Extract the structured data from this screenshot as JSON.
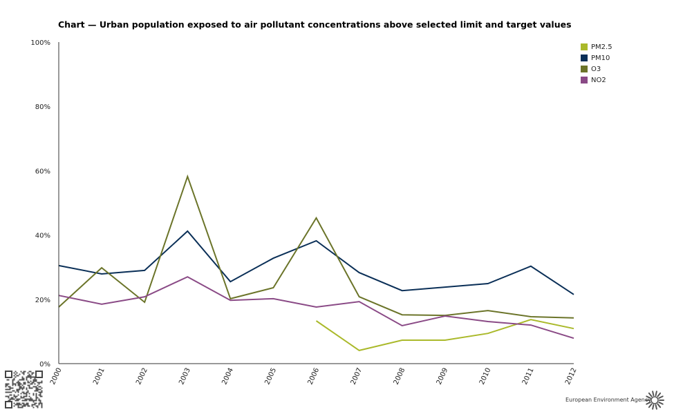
{
  "title": "Chart — Urban population exposed to air pollutant concentrations above selected limit and target values",
  "footer": {
    "agency": "European Environment Agency"
  },
  "icons": {
    "qr": "qr-code-icon",
    "logo": "eea-sun-logo-icon"
  },
  "chart_data": {
    "type": "line",
    "title": "Chart — Urban population exposed to air pollutant concentrations above selected limit and target values",
    "xlabel": "",
    "ylabel": "",
    "ylim": [
      0,
      100
    ],
    "yticks": [
      "0%",
      "20%",
      "40%",
      "60%",
      "80%",
      "100%"
    ],
    "ytick_values": [
      0,
      20,
      40,
      60,
      80,
      100
    ],
    "categories": [
      "2000",
      "2001",
      "2002",
      "2003",
      "2004",
      "2005",
      "2006",
      "2007",
      "2008",
      "2009",
      "2010",
      "2011",
      "2012"
    ],
    "legend_position": "top-right",
    "grid": false,
    "series": [
      {
        "name": "PM2.5",
        "color": "#aab92a",
        "values": [
          null,
          null,
          null,
          null,
          null,
          null,
          13.3,
          4.1,
          7.3,
          7.3,
          9.4,
          13.7,
          10.9
        ]
      },
      {
        "name": "PM10",
        "color": "#0a2f57",
        "values": [
          30.5,
          27.9,
          29.0,
          41.2,
          25.5,
          32.8,
          38.2,
          28.3,
          22.7,
          23.8,
          24.9,
          30.3,
          21.5
        ]
      },
      {
        "name": "O3",
        "color": "#6b7429",
        "values": [
          17.6,
          29.8,
          19.1,
          58.2,
          20.2,
          23.6,
          45.3,
          20.8,
          15.2,
          15.0,
          16.5,
          14.6,
          14.2
        ]
      },
      {
        "name": "NO2",
        "color": "#8a4a86",
        "values": [
          21.2,
          18.5,
          20.8,
          27.0,
          19.7,
          20.2,
          17.6,
          19.3,
          11.8,
          14.8,
          13.1,
          12.0,
          7.9
        ]
      }
    ]
  }
}
